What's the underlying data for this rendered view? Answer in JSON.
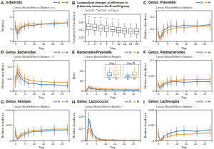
{
  "chart_data": [
    {
      "type": "line",
      "panel": "A",
      "title": "α-diversity",
      "xlabel": "Day",
      "ylabel": "Shannon",
      "x": [
        0,
        1,
        2,
        3,
        5,
        7,
        10,
        14,
        21,
        28
      ],
      "xlim": [
        -1,
        29
      ],
      "xticks": [
        0,
        5,
        10,
        15,
        20,
        25
      ],
      "ylim": [
        2,
        4.5
      ],
      "yticks": [
        2,
        3,
        4
      ],
      "annotations": [
        "Linear Mixed-Effects Models",
        "n.s."
      ],
      "series": [
        {
          "name": "N",
          "color": "#3b78c2",
          "values": [
            3.2,
            2.6,
            2.9,
            3.1,
            3.2,
            3.3,
            3.3,
            3.4,
            3.4,
            3.5
          ],
          "error": [
            0.4,
            0.5,
            0.4,
            0.4,
            0.3,
            0.3,
            0.3,
            0.3,
            0.3,
            0.3
          ]
        },
        {
          "name": "H",
          "color": "#f28e2b",
          "values": [
            3.3,
            2.8,
            3.0,
            3.2,
            3.3,
            3.4,
            3.4,
            3.4,
            3.5,
            3.5
          ],
          "error": [
            0.4,
            0.5,
            0.4,
            0.4,
            0.3,
            0.3,
            0.3,
            0.3,
            0.3,
            0.3
          ]
        }
      ]
    },
    {
      "type": "box",
      "panel": "B",
      "title": "Longitudinal changes of difference in β-diversity between the N and H group",
      "xlabel": "Day",
      "ylabel": "Unweighted UniFrac distance",
      "categories": [
        "1",
        "2",
        "3",
        "5",
        "7",
        "10",
        "14",
        "21",
        "28"
      ],
      "ylim": [
        0.3,
        1.0
      ],
      "yticks": [
        0.4,
        0.6,
        0.8
      ],
      "color": "#555555",
      "annotations": [
        "*p<0.05, **p<0.01, vs Day 0"
      ],
      "boxes": [
        {
          "min": 0.45,
          "q1": 0.6,
          "median": 0.68,
          "q3": 0.75,
          "max": 0.88
        },
        {
          "min": 0.45,
          "q1": 0.58,
          "median": 0.66,
          "q3": 0.74,
          "max": 0.86
        },
        {
          "min": 0.42,
          "q1": 0.56,
          "median": 0.64,
          "q3": 0.72,
          "max": 0.85
        },
        {
          "min": 0.4,
          "q1": 0.55,
          "median": 0.62,
          "q3": 0.7,
          "max": 0.84
        },
        {
          "min": 0.42,
          "q1": 0.55,
          "median": 0.6,
          "q3": 0.68,
          "max": 0.82
        },
        {
          "min": 0.4,
          "q1": 0.52,
          "median": 0.58,
          "q3": 0.66,
          "max": 0.8
        },
        {
          "min": 0.38,
          "q1": 0.5,
          "median": 0.57,
          "q3": 0.64,
          "max": 0.78
        },
        {
          "min": 0.38,
          "q1": 0.5,
          "median": 0.56,
          "q3": 0.63,
          "max": 0.78
        },
        {
          "min": 0.36,
          "q1": 0.48,
          "median": 0.55,
          "q3": 0.62,
          "max": 0.76
        }
      ],
      "significance": [
        "**",
        "**",
        "**",
        "**",
        "*",
        "*",
        null,
        null,
        null
      ]
    },
    {
      "type": "line",
      "panel": "C",
      "title": "Genus_Prevotella",
      "xlabel": "Day",
      "ylabel": "Relative abundance",
      "x": [
        0,
        1,
        2,
        3,
        5,
        7,
        10,
        14,
        21,
        28
      ],
      "xlim": [
        -1,
        29
      ],
      "xticks": [
        0,
        5,
        10,
        15,
        20,
        25
      ],
      "ylim": [
        0,
        0.5
      ],
      "yticks": [
        0,
        0.2,
        0.4
      ],
      "annotations": [
        "Linear Mixed-Effects Models"
      ],
      "series": [
        {
          "name": "N",
          "color": "#3b78c2",
          "values": [
            0.15,
            0.05,
            0.1,
            0.18,
            0.22,
            0.25,
            0.24,
            0.26,
            0.25,
            0.27
          ],
          "error": [
            0.1,
            0.05,
            0.08,
            0.1,
            0.1,
            0.1,
            0.1,
            0.1,
            0.1,
            0.1
          ]
        },
        {
          "name": "H",
          "color": "#f28e2b",
          "values": [
            0.12,
            0.04,
            0.08,
            0.14,
            0.18,
            0.2,
            0.22,
            0.22,
            0.24,
            0.25
          ],
          "error": [
            0.08,
            0.04,
            0.07,
            0.09,
            0.1,
            0.1,
            0.1,
            0.1,
            0.1,
            0.1
          ]
        }
      ]
    },
    {
      "type": "line",
      "panel": "D",
      "title": "Genus_Bacteroides",
      "xlabel": "Day",
      "ylabel": "Relative abundance",
      "x": [
        0,
        1,
        2,
        3,
        5,
        7,
        10,
        14,
        21,
        28
      ],
      "xlim": [
        -1,
        29
      ],
      "xticks": [
        0,
        5,
        10,
        15,
        20,
        25
      ],
      "ylim": [
        0,
        0.5
      ],
      "yticks": [
        0,
        0.2,
        0.4
      ],
      "annotations": [
        "Linear Mixed-Effects Models",
        "##"
      ],
      "series": [
        {
          "name": "N",
          "color": "#3b78c2",
          "values": [
            0.15,
            0.3,
            0.25,
            0.2,
            0.16,
            0.12,
            0.12,
            0.1,
            0.1,
            0.08
          ],
          "error": [
            0.1,
            0.12,
            0.12,
            0.1,
            0.08,
            0.07,
            0.07,
            0.06,
            0.06,
            0.05
          ]
        },
        {
          "name": "H",
          "color": "#f28e2b",
          "values": [
            0.15,
            0.35,
            0.3,
            0.25,
            0.2,
            0.18,
            0.16,
            0.15,
            0.14,
            0.14
          ],
          "error": [
            0.1,
            0.12,
            0.12,
            0.1,
            0.08,
            0.07,
            0.07,
            0.06,
            0.06,
            0.05
          ]
        }
      ]
    },
    {
      "type": "line",
      "panel": "E",
      "title": "Bacteroides/Prevotella",
      "xlabel": "Day",
      "ylabel": "Ratio",
      "x": [
        0,
        1,
        2,
        3,
        5,
        7,
        10,
        14,
        21,
        28
      ],
      "xlim": [
        -1,
        29
      ],
      "xticks": [
        0,
        5,
        10,
        15,
        20,
        25
      ],
      "ylim": [
        0,
        30
      ],
      "yticks": [
        0,
        10,
        20
      ],
      "annotations": [
        "Linear Mixed-Effects Models"
      ],
      "series": [
        {
          "name": "N",
          "color": "#3b78c2",
          "values": [
            1,
            3,
            2.5,
            2,
            1.5,
            1.2,
            1,
            1,
            0.8,
            0.7
          ],
          "error": [
            0.8,
            2,
            1.5,
            1.2,
            1,
            0.8,
            0.6,
            0.6,
            0.5,
            0.5
          ]
        },
        {
          "name": "H",
          "color": "#f28e2b",
          "values": [
            1.2,
            4,
            3.5,
            3,
            2.5,
            2,
            1.8,
            1.6,
            1.5,
            1.5
          ],
          "error": [
            1,
            2.5,
            2,
            1.8,
            1.5,
            1.2,
            1,
            1,
            1,
            1
          ]
        }
      ],
      "insets": [
        {
          "title": "Day 1",
          "categories": [
            "N",
            "H"
          ],
          "colors": [
            "#3b78c2",
            "#f28e2b"
          ],
          "ylim": [
            0,
            16
          ],
          "tick_labels": false,
          "boxes": [
            {
              "min": 0.5,
              "q1": 1.5,
              "median": 3,
              "q3": 6,
              "max": 12
            },
            {
              "min": 0.5,
              "q1": 2,
              "median": 4,
              "q3": 8,
              "max": 15
            }
          ]
        },
        {
          "title": "Day 28",
          "categories": [
            "N",
            "H"
          ],
          "colors": [
            "#3b78c2",
            "#f28e2b"
          ],
          "ylim": [
            0,
            6
          ],
          "tick_labels": false,
          "boxes": [
            {
              "min": 0.1,
              "q1": 0.3,
              "median": 0.6,
              "q3": 1.2,
              "max": 2.5
            },
            {
              "min": 0.2,
              "q1": 0.6,
              "median": 1.2,
              "q3": 2.5,
              "max": 5
            }
          ]
        }
      ]
    },
    {
      "type": "line",
      "panel": "F",
      "title": "Genus_Parabacteroides",
      "xlabel": "Day",
      "ylabel": "Relative abundance",
      "x": [
        0,
        1,
        2,
        3,
        5,
        7,
        10,
        14,
        21,
        28
      ],
      "xlim": [
        -1,
        29
      ],
      "xticks": [
        0,
        5,
        10,
        15,
        20,
        25
      ],
      "ylim": [
        0,
        0.1
      ],
      "yticks": [
        0,
        0.05,
        0.1
      ],
      "annotations": [
        "Linear Mixed-Effects Models"
      ],
      "series": [
        {
          "name": "N",
          "color": "#3b78c2",
          "values": [
            0.02,
            0.01,
            0.015,
            0.02,
            0.025,
            0.03,
            0.03,
            0.028,
            0.03,
            0.03
          ],
          "error": [
            0.012,
            0.008,
            0.01,
            0.012,
            0.014,
            0.015,
            0.015,
            0.015,
            0.015,
            0.015
          ]
        },
        {
          "name": "H",
          "color": "#f28e2b",
          "values": [
            0.025,
            0.012,
            0.018,
            0.024,
            0.03,
            0.034,
            0.035,
            0.036,
            0.037,
            0.038
          ],
          "error": [
            0.014,
            0.009,
            0.011,
            0.013,
            0.015,
            0.016,
            0.017,
            0.017,
            0.018,
            0.018
          ]
        }
      ]
    },
    {
      "type": "line",
      "panel": "G",
      "title": "Genus_Alistipes",
      "xlabel": "Day",
      "ylabel": "Relative abundance",
      "x": [
        0,
        1,
        2,
        3,
        5,
        7,
        10,
        14,
        21,
        28
      ],
      "xlim": [
        -1,
        29
      ],
      "xticks": [
        0,
        5,
        10,
        15,
        20,
        25
      ],
      "ylim": [
        0,
        0.04
      ],
      "yticks": [
        0,
        0.02,
        0.04
      ],
      "annotations": [
        "Linear Mixed-Effects Models"
      ],
      "series": [
        {
          "name": "N",
          "color": "#3b78c2",
          "values": [
            0.01,
            0.002,
            0.004,
            0.006,
            0.008,
            0.01,
            0.012,
            0.012,
            0.013,
            0.014
          ],
          "error": [
            0.006,
            0.002,
            0.003,
            0.004,
            0.005,
            0.006,
            0.006,
            0.006,
            0.006,
            0.007
          ]
        },
        {
          "name": "H",
          "color": "#f28e2b",
          "values": [
            0.012,
            0.003,
            0.005,
            0.008,
            0.01,
            0.012,
            0.013,
            0.014,
            0.015,
            0.015
          ],
          "error": [
            0.006,
            0.002,
            0.003,
            0.004,
            0.005,
            0.006,
            0.006,
            0.006,
            0.007,
            0.007
          ]
        }
      ]
    },
    {
      "type": "line",
      "panel": "H",
      "title": "Genus_Lactococcus",
      "xlabel": "Day",
      "ylabel": "Relative abundance",
      "x": [
        0,
        1,
        2,
        3,
        5,
        7,
        10,
        14,
        21,
        28
      ],
      "xlim": [
        -1,
        29
      ],
      "xticks": [
        0,
        5,
        10,
        15,
        20,
        25
      ],
      "ylim": [
        0,
        0.5
      ],
      "yticks": [
        0,
        0.2,
        0.4
      ],
      "annotations": [
        "Linear Mixed-Effects Models",
        "*"
      ],
      "series": [
        {
          "name": "N",
          "color": "#3b78c2",
          "values": [
            0,
            0.35,
            0.25,
            0.12,
            0.05,
            0.02,
            0.01,
            0.01,
            0,
            0
          ],
          "error": [
            0,
            0.12,
            0.1,
            0.07,
            0.03,
            0.015,
            0.01,
            0.01,
            0,
            0
          ]
        },
        {
          "name": "H",
          "color": "#f28e2b",
          "values": [
            0,
            0.2,
            0.15,
            0.08,
            0.03,
            0.01,
            0.01,
            0,
            0,
            0
          ],
          "error": [
            0,
            0.1,
            0.08,
            0.05,
            0.02,
            0.01,
            0.01,
            0,
            0,
            0
          ]
        }
      ]
    },
    {
      "type": "line",
      "panel": "I",
      "title": "Genus_Lachnospira",
      "xlabel": "Day",
      "ylabel": "Relative abundance",
      "x": [
        0,
        1,
        2,
        3,
        5,
        7,
        10,
        14,
        21,
        28
      ],
      "xlim": [
        -1,
        29
      ],
      "xticks": [
        0,
        5,
        10,
        15,
        20,
        25
      ],
      "ylim": [
        0,
        0.04
      ],
      "yticks": [
        0,
        0.02,
        0.04
      ],
      "annotations": [
        "Linear Mixed-Effects Models",
        "*"
      ],
      "series": [
        {
          "name": "N",
          "color": "#3b78c2",
          "values": [
            0.01,
            0,
            0.002,
            0.005,
            0.008,
            0.01,
            0.012,
            0.013,
            0.012,
            0.014
          ],
          "error": [
            0.006,
            0,
            0.002,
            0.003,
            0.004,
            0.005,
            0.006,
            0.006,
            0.006,
            0.006
          ]
        },
        {
          "name": "H",
          "color": "#f28e2b",
          "values": [
            0.01,
            0,
            0.001,
            0.003,
            0.005,
            0.006,
            0.008,
            0.008,
            0.009,
            0.01
          ],
          "error": [
            0.006,
            0,
            0.001,
            0.002,
            0.003,
            0.004,
            0.004,
            0.004,
            0.005,
            0.005
          ]
        }
      ]
    }
  ]
}
